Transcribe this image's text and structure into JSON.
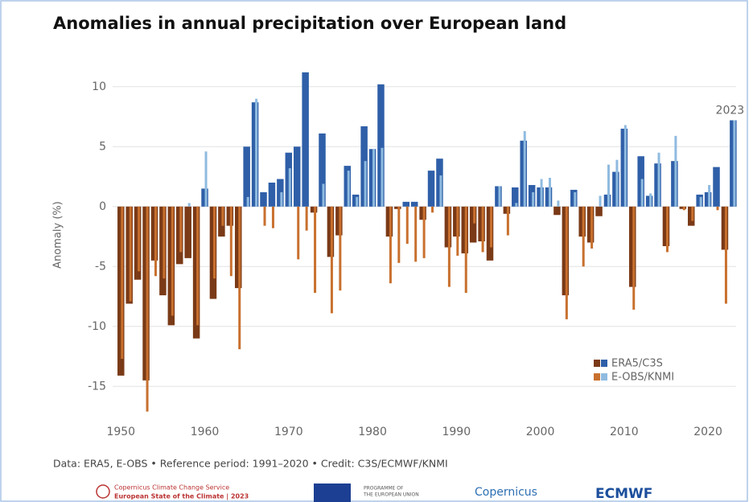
{
  "chart_data": {
    "type": "bar",
    "title": "Anomalies in annual precipitation over European land",
    "y_label": "Anomaly (%)",
    "annotation": "2023",
    "footer": "Data: ERA5, E-OBS • Reference period: 1991–2020 • Credit: C3S/ECMWF/KNMI",
    "logos": [
      "Copernicus Climate Change Service",
      "European State of the Climate | 2023",
      "PROGRAMME OF",
      "THE EUROPEAN UNION",
      "Copernicus",
      "ECMWF"
    ],
    "x": [
      1950,
      1951,
      1952,
      1953,
      1954,
      1955,
      1956,
      1957,
      1958,
      1959,
      1960,
      1961,
      1962,
      1963,
      1964,
      1965,
      1966,
      1967,
      1968,
      1969,
      1970,
      1971,
      1972,
      1973,
      1974,
      1975,
      1976,
      1977,
      1978,
      1979,
      1980,
      1981,
      1982,
      1983,
      1984,
      1985,
      1986,
      1987,
      1988,
      1989,
      1990,
      1991,
      1992,
      1993,
      1994,
      1995,
      1996,
      1997,
      1998,
      1999,
      2000,
      2001,
      2002,
      2003,
      2004,
      2005,
      2006,
      2007,
      2008,
      2009,
      2010,
      2011,
      2012,
      2013,
      2014,
      2015,
      2016,
      2017,
      2018,
      2019,
      2020,
      2021,
      2022,
      2023
    ],
    "series": [
      {
        "name": "ERA5/C3S",
        "color": "#2f5fa8",
        "negative_color": "#7a3a17",
        "values": [
          -14.1,
          -8.1,
          -6.1,
          -14.5,
          -4.5,
          -7.4,
          -9.9,
          -4.8,
          -4.3,
          -11.0,
          1.5,
          -7.7,
          -2.5,
          -1.6,
          -6.8,
          5.0,
          8.7,
          1.2,
          2.0,
          2.3,
          4.5,
          5.0,
          11.2,
          -0.5,
          6.1,
          -4.2,
          -2.4,
          3.4,
          1.0,
          6.7,
          4.8,
          10.2,
          -2.5,
          -0.2,
          0.4,
          0.4,
          -1.1,
          3.0,
          4.0,
          -3.4,
          -2.5,
          -3.9,
          -3.0,
          -2.9,
          -4.5,
          1.7,
          -0.6,
          1.6,
          5.5,
          1.8,
          1.6,
          1.6,
          -0.7,
          -7.4,
          1.4,
          -2.5,
          -3.0,
          -0.8,
          1.0,
          2.9,
          6.5,
          -6.7,
          4.2,
          0.9,
          3.6,
          -3.3,
          3.8,
          -0.2,
          -1.6,
          1.0,
          1.2,
          3.3,
          -3.6,
          7.2
        ]
      },
      {
        "name": "E-OBS/KNMI",
        "color": "#8fbbe0",
        "negative_color": "#c8702e",
        "values": [
          -12.7,
          -7.9,
          -5.4,
          -17.1,
          -5.8,
          -6.0,
          -9.1,
          -3.8,
          0.3,
          -9.9,
          4.6,
          -6.0,
          -1.6,
          -5.8,
          -11.9,
          0.8,
          9.0,
          -1.6,
          -1.8,
          1.2,
          3.2,
          -4.4,
          -2.0,
          -7.2,
          1.9,
          -8.9,
          -7.0,
          3.0,
          0.8,
          3.8,
          4.8,
          4.9,
          -6.4,
          -4.7,
          -3.1,
          -4.6,
          -4.3,
          -0.5,
          2.6,
          -6.7,
          -4.1,
          -7.2,
          -1.4,
          -3.8,
          -3.4,
          1.7,
          -2.4,
          0.3,
          6.3,
          1.2,
          2.3,
          2.4,
          0.5,
          -9.4,
          1.2,
          -5.0,
          -3.5,
          0.9,
          3.5,
          3.9,
          6.8,
          -8.6,
          2.3,
          1.1,
          4.5,
          -3.8,
          5.9,
          -0.3,
          -1.2,
          0.8,
          1.8,
          -0.3,
          -8.1,
          7.2
        ]
      }
    ],
    "xlim": [
      1947,
      2024.5
    ],
    "xticks": [
      1950,
      1960,
      1970,
      1980,
      1990,
      2000,
      2010,
      2020
    ],
    "ylim": [
      -18,
      12
    ],
    "yticks": [
      -15,
      -10,
      -5,
      0,
      5,
      10
    ],
    "grid": true,
    "legend": "lower right"
  }
}
